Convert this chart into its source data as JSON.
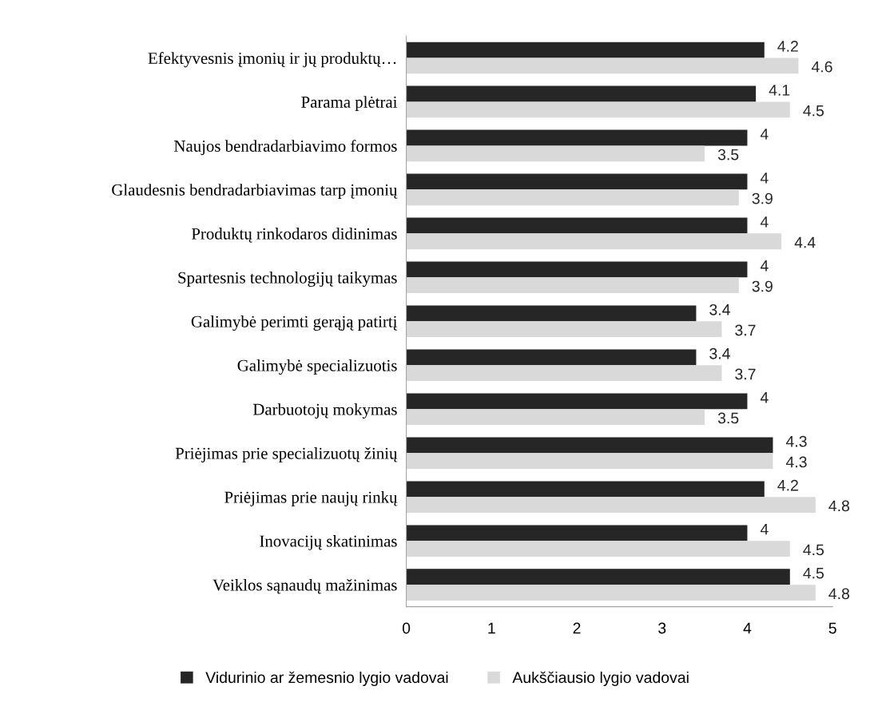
{
  "chart_data": {
    "type": "bar",
    "orientation": "horizontal",
    "categories": [
      "Efektyvesnis įmonių ir jų produktų…",
      "Parama plėtrai",
      "Naujos bendradarbiavimo formos",
      "Glaudesnis bendradarbiavimas tarp įmonių",
      "Produktų rinkodaros didinimas",
      "Spartesnis technologijų taikymas",
      "Galimybė perimti gerąją patirtį",
      "Galimybė specializuotis",
      "Darbuotojų mokymas",
      "Priėjimas prie specializuotų žinių",
      "Priėjimas prie naujų rinkų",
      "Inovacijų skatinimas",
      "Veiklos sąnaudų mažinimas"
    ],
    "series": [
      {
        "name": "Vidurinio ar žemesnio lygio vadovai",
        "color": "#262626",
        "values": [
          4.2,
          4.1,
          4,
          4,
          4,
          4,
          3.4,
          3.4,
          4,
          4.3,
          4.2,
          4,
          4.5
        ]
      },
      {
        "name": "Aukščiausio lygio vadovai",
        "color": "#d9d9d9",
        "values": [
          4.6,
          4.5,
          3.5,
          3.9,
          4.4,
          3.9,
          3.7,
          3.7,
          3.5,
          4.3,
          4.8,
          4.5,
          4.8
        ]
      }
    ],
    "xlim": [
      0,
      5
    ],
    "xticks": [
      0,
      1,
      2,
      3,
      4,
      5
    ],
    "data_labels": true,
    "legend": "bottom",
    "grid": false
  }
}
